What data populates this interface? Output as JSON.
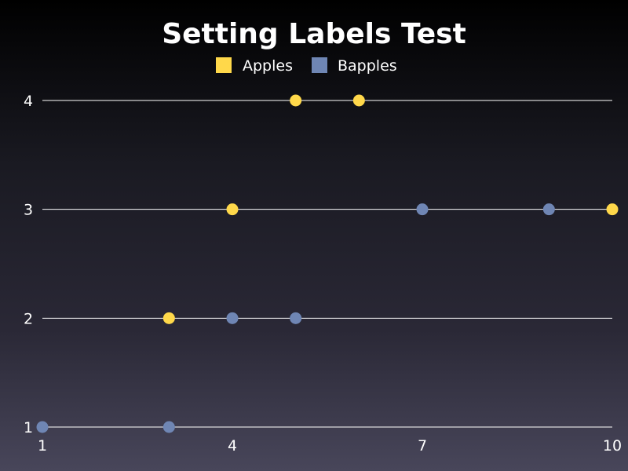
{
  "chart_data": {
    "type": "scatter",
    "title": "Setting Labels Test",
    "xlabel": "",
    "ylabel": "",
    "xlim": [
      1,
      10
    ],
    "ylim": [
      1,
      4
    ],
    "x_ticks": [
      "1",
      "4",
      "7",
      "10"
    ],
    "y_ticks": [
      "1",
      "2",
      "3",
      "4"
    ],
    "grid": "horizontal",
    "legend_position": "top-center",
    "series": [
      {
        "name": "Apples",
        "color": "#ffd84a",
        "points": [
          [
            3,
            2
          ],
          [
            4,
            3
          ],
          [
            5,
            4
          ],
          [
            6,
            4
          ],
          [
            10,
            3
          ]
        ]
      },
      {
        "name": "Bapples",
        "color": "#6f86b4",
        "points": [
          [
            1,
            1
          ],
          [
            3,
            1
          ],
          [
            4,
            2
          ],
          [
            5,
            2
          ],
          [
            7,
            3
          ],
          [
            9,
            3
          ]
        ]
      }
    ]
  }
}
